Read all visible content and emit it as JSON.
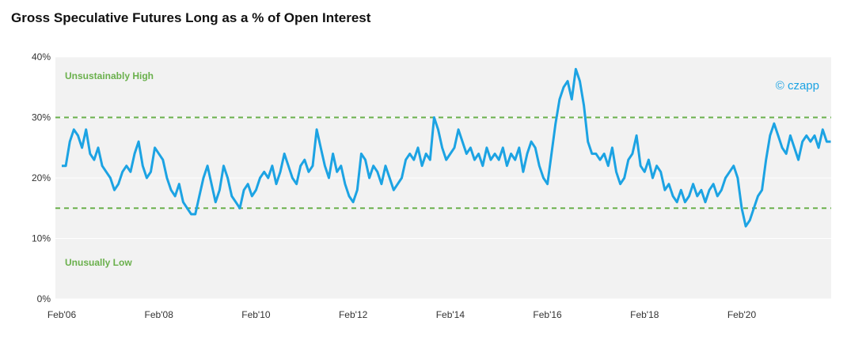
{
  "chart_data": {
    "type": "line",
    "title": "Gross Speculative Futures Long as a % of Open Interest",
    "categories": [
      "Feb'06",
      null,
      null,
      null,
      null,
      null,
      null,
      null,
      null,
      null,
      null,
      null,
      null,
      null,
      null,
      null,
      null,
      null,
      null,
      null,
      null,
      null,
      null,
      null,
      "Feb'08",
      null,
      null,
      null,
      null,
      null,
      null,
      null,
      null,
      null,
      null,
      null,
      null,
      null,
      null,
      null,
      null,
      null,
      null,
      null,
      null,
      null,
      null,
      null,
      "Feb'10",
      null,
      null,
      null,
      null,
      null,
      null,
      null,
      null,
      null,
      null,
      null,
      null,
      null,
      null,
      null,
      null,
      null,
      null,
      null,
      null,
      null,
      null,
      null,
      "Feb'12",
      null,
      null,
      null,
      null,
      null,
      null,
      null,
      null,
      null,
      null,
      null,
      null,
      null,
      null,
      null,
      null,
      null,
      null,
      null,
      null,
      null,
      null,
      null,
      "Feb'14",
      null,
      null,
      null,
      null,
      null,
      null,
      null,
      null,
      null,
      null,
      null,
      null,
      null,
      null,
      null,
      null,
      null,
      null,
      null,
      null,
      null,
      null,
      null,
      "Feb'16",
      null,
      null,
      null,
      null,
      null,
      null,
      null,
      null,
      null,
      null,
      null,
      null,
      null,
      null,
      null,
      null,
      null,
      null,
      null,
      null,
      null,
      null,
      null,
      "Feb'18",
      null,
      null,
      null,
      null,
      null,
      null,
      null,
      null,
      null,
      null,
      null,
      null,
      null,
      null,
      null,
      null,
      null,
      null,
      null,
      null,
      null,
      null,
      null,
      "Feb'20",
      null,
      null,
      null,
      null,
      null,
      null,
      null,
      null,
      null,
      null,
      null,
      null,
      null,
      null,
      null,
      null,
      null,
      null,
      null,
      null,
      null,
      null
    ],
    "series": [
      {
        "color": "#1ca3e3",
        "values": [
          22,
          22,
          26,
          28,
          27,
          25,
          28,
          24,
          23,
          25,
          22,
          21,
          20,
          18,
          19,
          21,
          22,
          21,
          24,
          26,
          22,
          20,
          21,
          25,
          24,
          23,
          20,
          18,
          17,
          19,
          16,
          15,
          14,
          14,
          17,
          20,
          22,
          19,
          16,
          18,
          22,
          20,
          17,
          16,
          15,
          18,
          19,
          17,
          18,
          20,
          21,
          20,
          22,
          19,
          21,
          24,
          22,
          20,
          19,
          22,
          23,
          21,
          22,
          28,
          25,
          22,
          20,
          24,
          21,
          22,
          19,
          17,
          16,
          18,
          24,
          23,
          20,
          22,
          21,
          19,
          22,
          20,
          18,
          19,
          20,
          23,
          24,
          23,
          25,
          22,
          24,
          23,
          30,
          28,
          25,
          23,
          24,
          25,
          28,
          26,
          24,
          25,
          23,
          24,
          22,
          25,
          23,
          24,
          23,
          25,
          22,
          24,
          23,
          25,
          21,
          24,
          26,
          25,
          22,
          20,
          19,
          24,
          29,
          33,
          35,
          36,
          33,
          38,
          36,
          32,
          26,
          24,
          24,
          23,
          24,
          22,
          25,
          21,
          19,
          20,
          23,
          24,
          27,
          22,
          21,
          23,
          20,
          22,
          21,
          18,
          19,
          17,
          16,
          18,
          16,
          17,
          19,
          17,
          18,
          16,
          18,
          19,
          17,
          18,
          20,
          21,
          22,
          20,
          15,
          12,
          13,
          15,
          17,
          18,
          23,
          27,
          29,
          27,
          25,
          24,
          27,
          25,
          23,
          26,
          27,
          26,
          27,
          25,
          28,
          26,
          26
        ]
      }
    ],
    "ylim": [
      0,
      40
    ],
    "yticks": [
      {
        "value": 0,
        "label": "0%"
      },
      {
        "value": 10,
        "label": "10%"
      },
      {
        "value": 20,
        "label": "20%"
      },
      {
        "value": 30,
        "label": "30%"
      },
      {
        "value": 40,
        "label": "40%"
      }
    ],
    "grid": true,
    "reference_lines": [
      {
        "value": 30,
        "label": "Unsustainably High",
        "color": "#6ab04c"
      },
      {
        "value": 15,
        "label": "Unusually Low",
        "color": "#6ab04c"
      }
    ],
    "watermark": "© czapp"
  }
}
